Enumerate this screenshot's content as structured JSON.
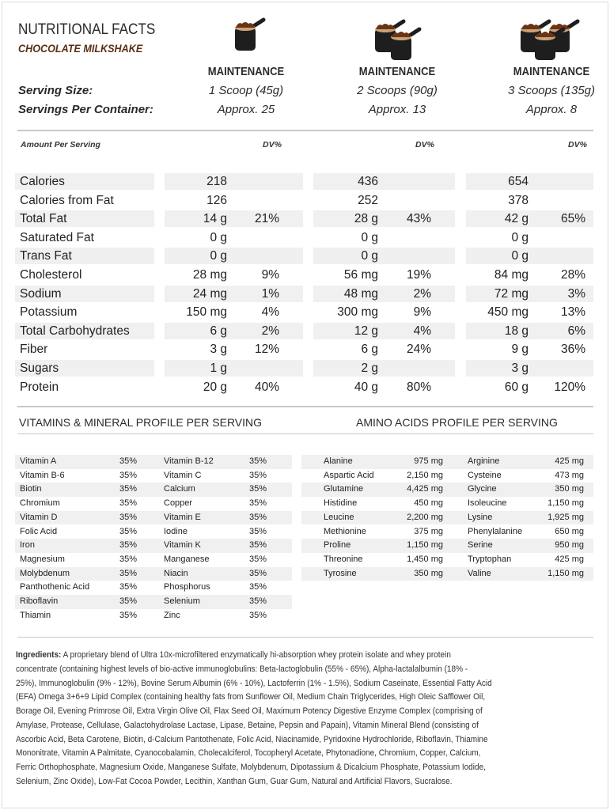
{
  "header": {
    "title": "NUTRITIONAL FACTS",
    "subtitle": "CHOCOLATE MILKSHAKE"
  },
  "colors": {
    "accent": "#5a2e12",
    "shade": "#f0f0f0",
    "powder": "#6b3515"
  },
  "serving_labels": {
    "size": "Serving Size:",
    "per_container": "Servings Per Container:"
  },
  "columns": [
    {
      "icon": "one-scoop-icon",
      "plan": "MAINTENANCE",
      "size": "1 Scoop (45g)",
      "servings": "Approx. 25"
    },
    {
      "icon": "two-scoops-icon",
      "plan": "MAINTENANCE",
      "size": "2 Scoops (90g)",
      "servings": "Approx. 13"
    },
    {
      "icon": "three-scoops-icon",
      "plan": "MAINTENANCE",
      "size": "3 Scoops (135g)",
      "servings": "Approx. 8"
    }
  ],
  "amount_header": {
    "label": "Amount Per Serving",
    "dv": "DV%"
  },
  "nutrients": [
    {
      "name": "Calories",
      "v": [
        [
          "218",
          ""
        ],
        [
          "436",
          ""
        ],
        [
          "654",
          ""
        ]
      ]
    },
    {
      "name": "Calories from Fat",
      "v": [
        [
          "126",
          ""
        ],
        [
          "252",
          ""
        ],
        [
          "378",
          ""
        ]
      ]
    },
    {
      "name": "Total Fat",
      "v": [
        [
          "14 g",
          "21%"
        ],
        [
          "28 g",
          "43%"
        ],
        [
          "42 g",
          "65%"
        ]
      ]
    },
    {
      "name": "Saturated Fat",
      "v": [
        [
          "0 g",
          ""
        ],
        [
          "0 g",
          ""
        ],
        [
          "0 g",
          ""
        ]
      ]
    },
    {
      "name": "Trans Fat",
      "v": [
        [
          "0 g",
          ""
        ],
        [
          "0 g",
          ""
        ],
        [
          "0 g",
          ""
        ]
      ]
    },
    {
      "name": "Cholesterol",
      "v": [
        [
          "28 mg",
          "9%"
        ],
        [
          "56 mg",
          "19%"
        ],
        [
          "84 mg",
          "28%"
        ]
      ]
    },
    {
      "name": "Sodium",
      "v": [
        [
          "24 mg",
          "1%"
        ],
        [
          "48 mg",
          "2%"
        ],
        [
          "72 mg",
          "3%"
        ]
      ]
    },
    {
      "name": "Potassium",
      "v": [
        [
          "150 mg",
          "4%"
        ],
        [
          "300 mg",
          "9%"
        ],
        [
          "450 mg",
          "13%"
        ]
      ]
    },
    {
      "name": "Total Carbohydrates",
      "v": [
        [
          "6 g",
          "2%"
        ],
        [
          "12 g",
          "4%"
        ],
        [
          "18 g",
          "6%"
        ]
      ]
    },
    {
      "name": "Fiber",
      "v": [
        [
          "3 g",
          "12%"
        ],
        [
          "6 g",
          "24%"
        ],
        [
          "9 g",
          "36%"
        ]
      ]
    },
    {
      "name": "Sugars",
      "v": [
        [
          "1 g",
          ""
        ],
        [
          "2 g",
          ""
        ],
        [
          "3 g",
          ""
        ]
      ]
    },
    {
      "name": "Protein",
      "v": [
        [
          "20 g",
          "40%"
        ],
        [
          "40 g",
          "80%"
        ],
        [
          "60 g",
          "120%"
        ]
      ]
    }
  ],
  "vitamins_title": "VITAMINS & MINERAL PROFILE PER SERVING",
  "amino_title": "AMINO ACIDS PROFILE PER SERVING",
  "vitamins": [
    [
      "Vitamin A",
      "35%",
      "Vitamin B-12",
      "35%"
    ],
    [
      "Vitamin B-6",
      "35%",
      "Vitamin C",
      "35%"
    ],
    [
      "Biotin",
      "35%",
      "Calcium",
      "35%"
    ],
    [
      "Chromium",
      "35%",
      "Copper",
      "35%"
    ],
    [
      "Vitamin D",
      "35%",
      "Vitamin E",
      "35%"
    ],
    [
      "Folic Acid",
      "35%",
      "Iodine",
      "35%"
    ],
    [
      "Iron",
      "35%",
      "Vitamin K",
      "35%"
    ],
    [
      "Magnesium",
      "35%",
      "Manganese",
      "35%"
    ],
    [
      "Molybdenum",
      "35%",
      "Niacin",
      "35%"
    ],
    [
      "Panthothenic Acid",
      "35%",
      "Phosphorus",
      "35%"
    ],
    [
      "Riboflavin",
      "35%",
      "Selenium",
      "35%"
    ],
    [
      "Thiamin",
      "35%",
      "Zinc",
      "35%"
    ]
  ],
  "amino": [
    [
      "Alanine",
      "975 mg",
      "Arginine",
      "425 mg"
    ],
    [
      "Aspartic Acid",
      "2,150 mg",
      "Cysteine",
      "473 mg"
    ],
    [
      "Glutamine",
      "4,425 mg",
      "Glycine",
      "350 mg"
    ],
    [
      "Histidine",
      "450 mg",
      "Isoleucine",
      "1,150 mg"
    ],
    [
      "Leucine",
      "2,200 mg",
      "Lysine",
      "1,925 mg"
    ],
    [
      "Methionine",
      "375 mg",
      "Phenylalanine",
      "650 mg"
    ],
    [
      "Proline",
      "1,150 mg",
      "Serine",
      "950 mg"
    ],
    [
      "Threonine",
      "1,450 mg",
      "Tryptophan",
      "425 mg"
    ],
    [
      "Tyrosine",
      "350 mg",
      "Valine",
      "1,150 mg"
    ]
  ],
  "ingredients": {
    "label": "Ingredients:",
    "lines": [
      " A proprietary blend of Ultra 10x-microfiltered enzymatically hi-absorption whey protein isolate and whey protein",
      "concentrate (containing highest levels of bio-active immunoglobulins:  Beta-lactoglobulin (55% - 65%), Alpha-lactalalbumin (18% -",
      "25%), Immunoglobulin (9% - 12%), Bovine Serum Albumin (6% - 10%), Lactoferrin (1% - 1.5%), Sodium Caseinate, Essential Fatty Acid",
      "(EFA) Omega 3+6+9 Lipid Complex (containing healthy fats from Sunflower Oil, Medium Chain Triglycerides, High Oleic Safflower Oil,",
      "Borage Oil, Evening Primrose Oil, Extra Virgin Olive Oil, Flax Seed Oil, Maximum Potency Digestive Enzyme Complex (comprising of",
      "Amylase, Protease, Cellulase, Galactohydrolase Lactase, Lipase, Betaine, Pepsin and Papain), Vitamin Mineral Blend (consisting of",
      "Ascorbic Acid, Beta Carotene, Biotin, d-Calcium Pantothenate, Folic Acid, Niacinamide, Pyridoxine Hydrochloride, Riboflavin, Thiamine",
      "Mononitrate, Vitamin A Palmitate, Cyanocobalamin, Cholecalciferol, Tocopheryl Acetate, Phytonadione, Chromium, Copper, Calcium,",
      "Ferric Orthophosphate, Magnesium Oxide, Manganese Sulfate, Molybdenum, Dipotassium & Dicalcium Phosphate, Potassium Iodide,",
      "Selenium, Zinc Oxide), Low-Fat Cocoa Powder, Lecithin, Xanthan Gum, Guar Gum, Natural and Artificial Flavors, Sucralose."
    ]
  }
}
